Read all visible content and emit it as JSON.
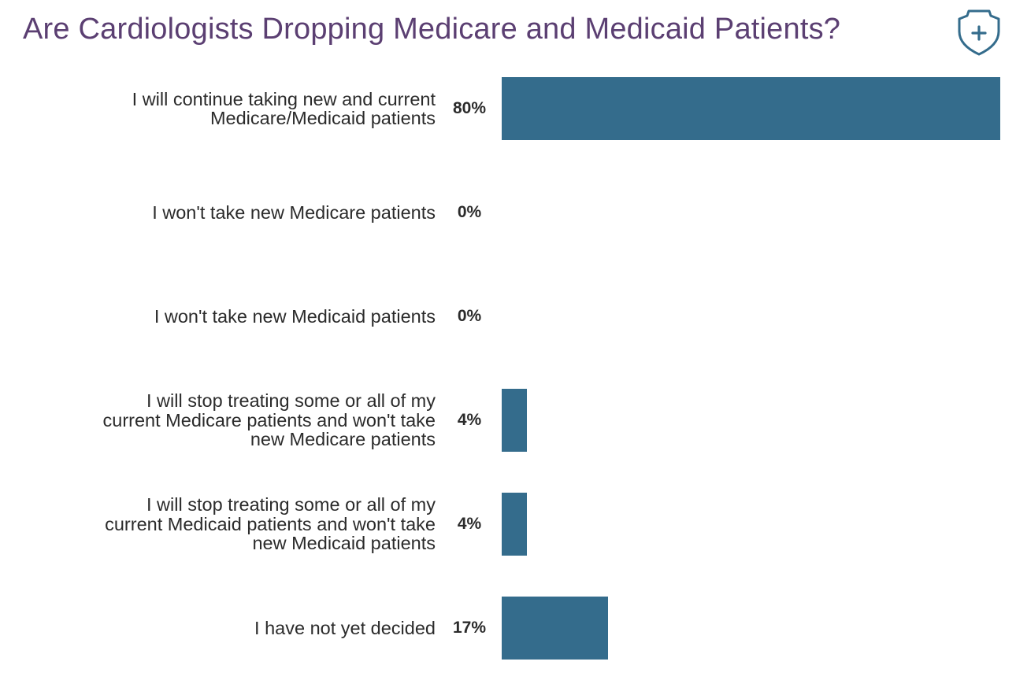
{
  "chart_data": {
    "type": "bar",
    "orientation": "horizontal",
    "title": "Are Cardiologists Dropping Medicare and Medicaid Patients?",
    "categories": [
      "I will continue taking new and current Medicare/Medicaid patients",
      "I won't take new Medicare patients",
      "I won't take new Medicaid patients",
      "I will stop treating some or all of my current Medicare patients and won't take new Medicare patients",
      "I will stop treating some or all of my current Medicaid patients and won't take new Medicaid patients",
      "I have not yet decided"
    ],
    "values": [
      80,
      0,
      0,
      4,
      4,
      17
    ],
    "data_labels": [
      "80%",
      "0%",
      "0%",
      "4%",
      "4%",
      "17%"
    ],
    "xlim": [
      0,
      80
    ],
    "grid": false,
    "bar_color": "#346c8c",
    "title_color": "#5b3f72"
  },
  "icon": "shield-plus-icon"
}
